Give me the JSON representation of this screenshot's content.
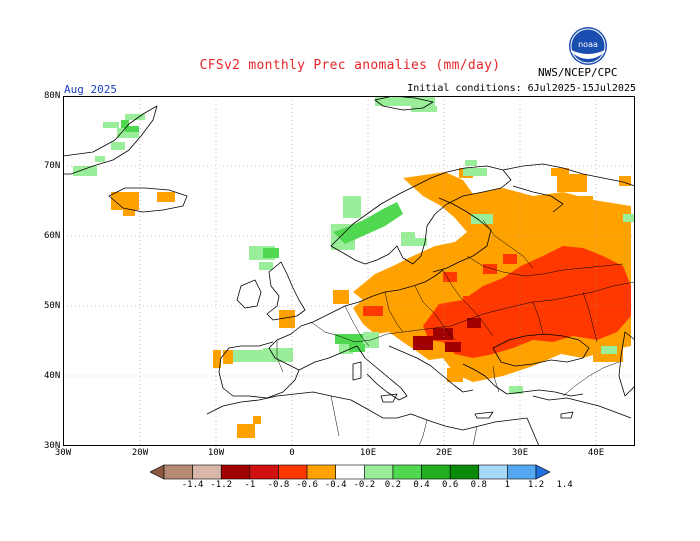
{
  "title": "CFSv2 monthly Prec anomalies (mm/day)",
  "agency": "NWS/NCEP/CPC",
  "logo_text": "noaa",
  "period": "Aug 2025",
  "initial_conditions": "Initial conditions: 6Jul2025-15Jul2025",
  "lat_labels": [
    "80N",
    "70N",
    "60N",
    "50N",
    "40N",
    "30N"
  ],
  "lon_labels": [
    "30W",
    "20W",
    "10W",
    "0",
    "10E",
    "20E",
    "30E",
    "40E"
  ],
  "legend": {
    "labels": [
      "-1.4",
      "-1.2",
      "-1",
      "-0.8",
      "-0.6",
      "-0.4",
      "-0.2",
      "0.2",
      "0.4",
      "0.6",
      "0.8",
      "1",
      "1.2",
      "1.4"
    ],
    "colors": [
      "#8c5a3c",
      "#b48a74",
      "#d9b7a8",
      "#a00000",
      "#d01010",
      "#ff3800",
      "#ffa200",
      "#ffffff",
      "#9aee9a",
      "#50d850",
      "#22b022",
      "#0a8a0a",
      "#a8d8f8",
      "#55a8f0",
      "#2070e0"
    ]
  },
  "colors": {
    "dry_orange": "#ffa200",
    "dry_red": "#ff3800",
    "dry_dark": "#a00000",
    "wet_light": "#9aee9a",
    "wet_mid": "#50d850",
    "title_red": "#e8262a",
    "period_blue": "#1b3fbf"
  }
}
